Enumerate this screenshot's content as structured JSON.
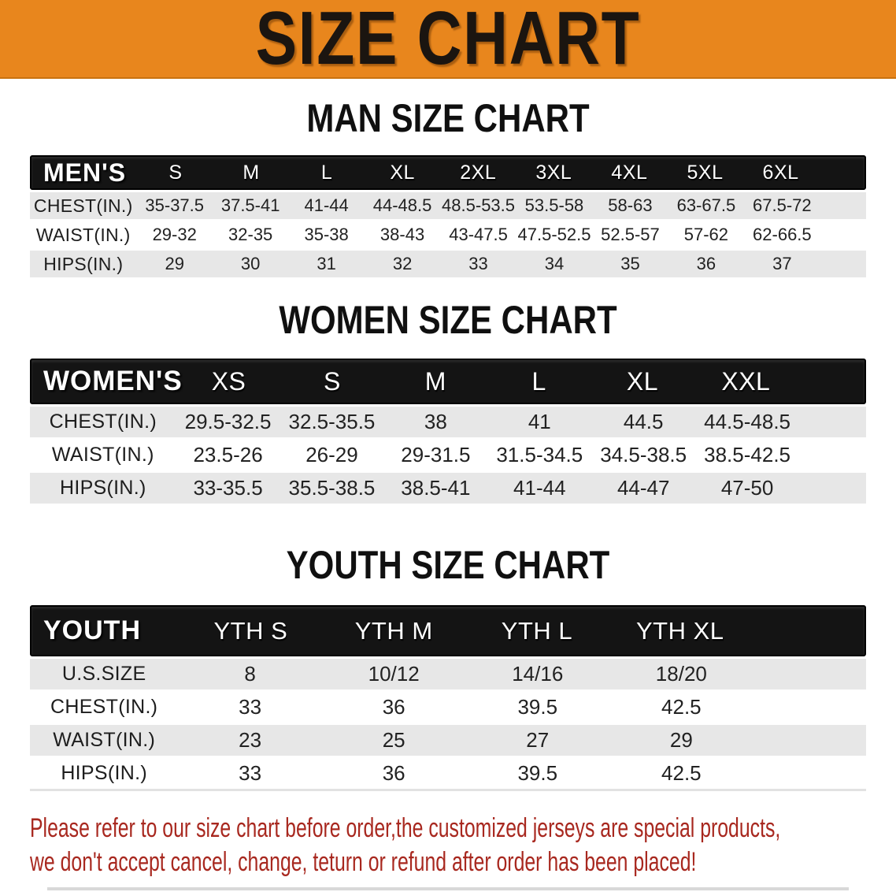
{
  "banner": {
    "title": "SIZE CHART",
    "bg_color": "#E8861D",
    "text_color": "#1b1510"
  },
  "sections": [
    {
      "heading": "MAN SIZE CHART",
      "label": "MEN'S",
      "columns": [
        "S",
        "M",
        "L",
        "XL",
        "2XL",
        "3XL",
        "4XL",
        "5XL",
        "6XL"
      ],
      "rows": [
        {
          "label": "CHEST(IN.)",
          "values": [
            "35-37.5",
            "37.5-41",
            "41-44",
            "44-48.5",
            "48.5-53.5",
            "53.5-58",
            "58-63",
            "63-67.5",
            "67.5-72"
          ]
        },
        {
          "label": "WAIST(IN.)",
          "values": [
            "29-32",
            "32-35",
            "35-38",
            "38-43",
            "43-47.5",
            "47.5-52.5",
            "52.5-57",
            "57-62",
            "62-66.5"
          ]
        },
        {
          "label": "HIPS(IN.)",
          "values": [
            "29",
            "30",
            "31",
            "32",
            "33",
            "34",
            "35",
            "36",
            "37"
          ]
        }
      ]
    },
    {
      "heading": "WOMEN SIZE CHART",
      "label": "WOMEN'S",
      "columns": [
        "XS",
        "S",
        "M",
        "L",
        "XL",
        "XXL"
      ],
      "rows": [
        {
          "label": "CHEST(IN.)",
          "values": [
            "29.5-32.5",
            "32.5-35.5",
            "38",
            "41",
            "44.5",
            "44.5-48.5"
          ]
        },
        {
          "label": "WAIST(IN.)",
          "values": [
            "23.5-26",
            "26-29",
            "29-31.5",
            "31.5-34.5",
            "34.5-38.5",
            "38.5-42.5"
          ]
        },
        {
          "label": "HIPS(IN.)",
          "values": [
            "33-35.5",
            "35.5-38.5",
            "38.5-41",
            "41-44",
            "44-47",
            "47-50"
          ]
        }
      ]
    },
    {
      "heading": "YOUTH SIZE CHART",
      "label": "YOUTH",
      "columns": [
        "YTH S",
        "YTH M",
        "YTH L",
        "YTH XL"
      ],
      "rows": [
        {
          "label": "U.S.SIZE",
          "values": [
            "8",
            "10/12",
            "14/16",
            "18/20"
          ]
        },
        {
          "label": "CHEST(IN.)",
          "values": [
            "33",
            "36",
            "39.5",
            "42.5"
          ]
        },
        {
          "label": "WAIST(IN.)",
          "values": [
            "23",
            "25",
            "27",
            "29"
          ]
        },
        {
          "label": "HIPS(IN.)",
          "values": [
            "33",
            "36",
            "39.5",
            "42.5"
          ]
        }
      ]
    }
  ],
  "table_style": {
    "header_bg": "#141414",
    "header_text": "#ffffff",
    "stripe_gray": "#E7E7E7",
    "stripe_white": "#ffffff"
  },
  "disclaimer": {
    "color": "#A8281F",
    "line1": "Please refer to our size chart before order,the customized jerseys are special products,",
    "line2": "we don't accept cancel, change, teturn or refund after order has been placed!"
  }
}
